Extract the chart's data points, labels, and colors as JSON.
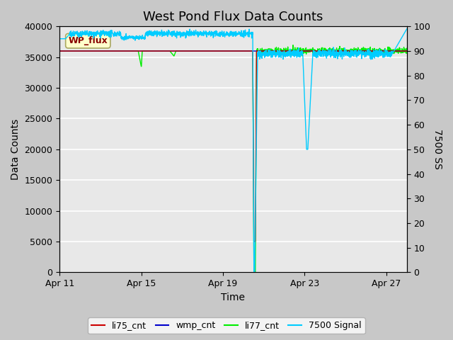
{
  "title": "West Pond Flux Data Counts",
  "xlabel": "Time",
  "ylabel_left": "Data Counts",
  "ylabel_right": "7500 SS",
  "xlim": [
    0,
    17
  ],
  "ylim_left": [
    0,
    40000
  ],
  "ylim_right": [
    0,
    100
  ],
  "x_tick_labels": [
    "Apr 11",
    "Apr 15",
    "Apr 19",
    "Apr 23",
    "Apr 27"
  ],
  "x_tick_positions": [
    0,
    4,
    8,
    12,
    16
  ],
  "y_left_ticks": [
    0,
    5000,
    10000,
    15000,
    20000,
    25000,
    30000,
    35000,
    40000
  ],
  "y_right_ticks": [
    0,
    10,
    20,
    30,
    40,
    50,
    60,
    70,
    80,
    90,
    100
  ],
  "fig_bg": "#c8c8c8",
  "plot_bg": "#e8e8e8",
  "grid_color": "#ffffff",
  "wp_flux_label": "WP_flux",
  "wp_flux_facecolor": "#ffffcc",
  "wp_flux_edgecolor": "#aaa860",
  "wp_flux_textcolor": "#880000",
  "color_li75": "#cc0000",
  "color_wmp": "#0000cc",
  "color_li77": "#00ee00",
  "color_signal": "#00ccff",
  "linewidth": 1.0,
  "title_fontsize": 13,
  "axis_label_fontsize": 10,
  "tick_fontsize": 9,
  "legend_fontsize": 9
}
